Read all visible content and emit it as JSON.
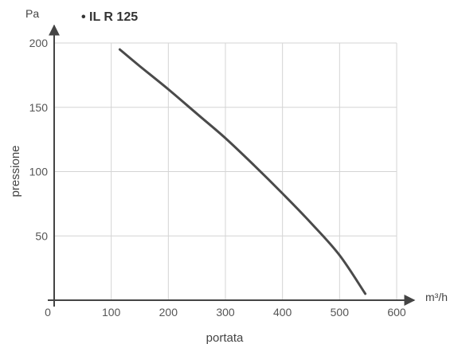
{
  "chart_data": {
    "type": "line",
    "title": "• IL R 125",
    "xlabel": "portata",
    "ylabel": "pressione",
    "x_unit": "m³/h",
    "y_unit": "Pa",
    "xlim": [
      0,
      600
    ],
    "ylim": [
      0,
      200
    ],
    "x_ticks": [
      0,
      100,
      200,
      300,
      400,
      500,
      600
    ],
    "y_ticks": [
      50,
      100,
      150,
      200
    ],
    "grid": true,
    "series": [
      {
        "name": "",
        "color": "#4a4a4a",
        "x": [
          115,
          150,
          200,
          250,
          300,
          350,
          400,
          450,
          500,
          545
        ],
        "y": [
          195,
          182,
          164,
          145,
          126,
          105,
          83,
          60,
          35,
          5
        ]
      }
    ]
  }
}
